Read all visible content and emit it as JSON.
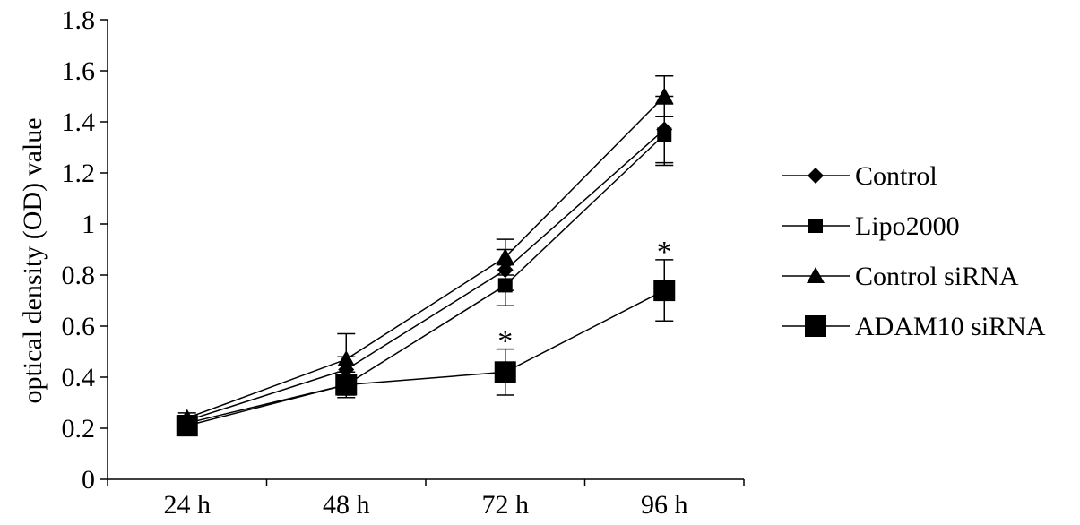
{
  "chart_data": {
    "type": "line",
    "title": "",
    "xlabel": "",
    "ylabel": "optical density (OD) value",
    "categories": [
      "24 h",
      "48 h",
      "72 h",
      "96 h"
    ],
    "ylim": [
      0,
      1.8
    ],
    "yticks": [
      {
        "value": 0,
        "label": "0"
      },
      {
        "value": 0.2,
        "label": "0.2"
      },
      {
        "value": 0.4,
        "label": "0.4"
      },
      {
        "value": 0.6,
        "label": "0.6"
      },
      {
        "value": 0.8,
        "label": "0.8"
      },
      {
        "value": 1.0,
        "label": "1"
      },
      {
        "value": 1.2,
        "label": "1.2"
      },
      {
        "value": 1.4,
        "label": "1.4"
      },
      {
        "value": 1.6,
        "label": "1.6"
      },
      {
        "value": 1.8,
        "label": "1.8"
      }
    ],
    "grid": false,
    "legend_position": "right",
    "series": [
      {
        "name": "Control",
        "marker": "diamond",
        "values": [
          0.23,
          0.43,
          0.82,
          1.37
        ],
        "errors": [
          0.02,
          0.05,
          0.08,
          0.13
        ]
      },
      {
        "name": "Lipo2000",
        "marker": "square-small",
        "values": [
          0.22,
          0.37,
          0.76,
          1.35
        ],
        "errors": [
          0.02,
          0.04,
          0.08,
          0.12
        ]
      },
      {
        "name": "Control siRNA",
        "marker": "triangle",
        "values": [
          0.24,
          0.47,
          0.87,
          1.5
        ],
        "errors": [
          0.02,
          0.1,
          0.07,
          0.08
        ]
      },
      {
        "name": "ADAM10 siRNA",
        "marker": "square-large",
        "values": [
          0.21,
          0.37,
          0.42,
          0.74
        ],
        "errors": [
          0.02,
          0.05,
          0.09,
          0.12
        ]
      }
    ],
    "annotations": [
      {
        "text": "*",
        "category": "72 h",
        "value": 0.58
      },
      {
        "text": "*",
        "category": "96 h",
        "value": 0.93
      }
    ]
  },
  "legend": {
    "items": [
      "Control",
      "Lipo2000",
      "Control siRNA",
      "ADAM10 siRNA"
    ]
  }
}
